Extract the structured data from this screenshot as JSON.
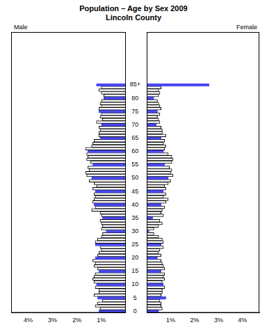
{
  "chart_data": {
    "type": "bar",
    "orientation": "horizontal",
    "title": "Population – Age by Sex 2009",
    "subtitle": "Lincoln County",
    "categories": [
      "0",
      null,
      null,
      null,
      null,
      "5",
      null,
      null,
      null,
      null,
      "10",
      null,
      null,
      null,
      null,
      "15",
      null,
      null,
      null,
      null,
      "20",
      null,
      null,
      null,
      null,
      "25",
      null,
      null,
      null,
      null,
      "30",
      null,
      null,
      null,
      null,
      "35",
      null,
      null,
      null,
      null,
      "40",
      null,
      null,
      null,
      null,
      "45",
      null,
      null,
      null,
      null,
      "50",
      null,
      null,
      null,
      null,
      "55",
      null,
      null,
      null,
      null,
      "60",
      null,
      null,
      null,
      null,
      "65",
      null,
      null,
      null,
      null,
      "70",
      null,
      null,
      null,
      null,
      "75",
      null,
      null,
      null,
      null,
      "80",
      null,
      null,
      null,
      null,
      "85+"
    ],
    "xlim": [
      0,
      4.7
    ],
    "xticks": [
      {
        "value": 1,
        "label": "1%"
      },
      {
        "value": 2,
        "label": "2%"
      },
      {
        "value": 3,
        "label": "3%"
      },
      {
        "value": 4,
        "label": "4%"
      }
    ],
    "series": [
      {
        "name": "Male",
        "values": [
          1.1,
          1.05,
          1.25,
          1.15,
          0.95,
          1.15,
          1.3,
          1.1,
          1.1,
          1.25,
          1.2,
          1.3,
          1.35,
          1.3,
          1.25,
          1.1,
          1.15,
          1.3,
          1.25,
          1.35,
          1.25,
          1.15,
          1.1,
          1.0,
          1.05,
          1.25,
          1.25,
          1.15,
          1.0,
          0.95,
          0.8,
          1.0,
          0.95,
          1.0,
          1.05,
          0.95,
          1.0,
          1.05,
          1.4,
          1.25,
          1.3,
          1.35,
          1.3,
          1.25,
          1.3,
          1.25,
          1.35,
          1.2,
          1.3,
          1.5,
          1.4,
          1.6,
          1.65,
          1.5,
          1.55,
          1.35,
          1.45,
          1.6,
          1.55,
          1.6,
          1.55,
          1.65,
          1.4,
          1.35,
          1.3,
          1.05,
          1.1,
          1.1,
          1.05,
          1.1,
          1.0,
          1.2,
          0.95,
          1.05,
          1.0,
          1.1,
          1.1,
          1.0,
          1.05,
          1.0,
          0.9,
          0.9,
          1.0,
          1.1,
          1.0,
          1.2
        ],
        "colors": [
          "#4848f0",
          "#ffffff",
          "#ffffff",
          "#ffffff",
          "#ffffff",
          "#4848f0",
          "#ffffff",
          "#ffffff",
          "#ffffff",
          "#ffffff",
          "#4848f0",
          "#ffffff",
          "#ffffff",
          "#ffffff",
          "#ffffff",
          "#4848f0",
          "#ffffff",
          "#ffffff",
          "#ffffff",
          "#ffffff",
          "#4848f0",
          "#ffffff",
          "#ffffff",
          "#ffffff",
          "#ffffff",
          "#4848f0",
          "#ffffff",
          "#ffffff",
          "#ffffff",
          "#ffffff",
          "#4848f0",
          "#ffffff",
          "#ffffff",
          "#ffffff",
          "#ffffff",
          "#4848f0",
          "#ffffff",
          "#ffffff",
          "#ffffff",
          "#ffffff",
          "#4848f0",
          "#ffffff",
          "#ffffff",
          "#ffffff",
          "#ffffff",
          "#4848f0",
          "#ffffff",
          "#ffffff",
          "#ffffff",
          "#ffffff",
          "#4848f0",
          "#ffffff",
          "#ffffff",
          "#ffffff",
          "#ffffff",
          "#4848f0",
          "#ffffff",
          "#ffffff",
          "#ffffff",
          "#ffffff",
          "#4848f0",
          "#ffffff",
          "#ffffff",
          "#ffffff",
          "#ffffff",
          "#4848f0",
          "#ffffff",
          "#ffffff",
          "#ffffff",
          "#ffffff",
          "#4848f0",
          "#ffffff",
          "#ffffff",
          "#ffffff",
          "#ffffff",
          "#4848f0",
          "#ffffff",
          "#ffffff",
          "#ffffff",
          "#ffffff",
          "#4848f0",
          "#ffffff",
          "#ffffff",
          "#ffffff",
          "#ffffff",
          "#4848f0"
        ]
      },
      {
        "name": "Female",
        "values": [
          0.5,
          0.65,
          0.6,
          0.6,
          0.55,
          0.8,
          0.6,
          0.65,
          0.65,
          0.75,
          0.7,
          0.65,
          0.75,
          0.7,
          0.75,
          0.6,
          0.75,
          0.7,
          0.65,
          0.6,
          0.45,
          0.6,
          0.5,
          0.55,
          0.7,
          0.6,
          0.7,
          0.65,
          0.5,
          0.3,
          0.1,
          0.3,
          0.5,
          0.65,
          0.55,
          0.25,
          0.7,
          0.6,
          0.65,
          0.75,
          0.6,
          0.8,
          0.9,
          0.7,
          0.8,
          0.7,
          0.8,
          0.75,
          0.9,
          1.0,
          0.9,
          1.1,
          1.0,
          1.05,
          0.95,
          0.75,
          1.05,
          1.1,
          1.05,
          0.9,
          0.7,
          0.75,
          0.8,
          0.7,
          0.75,
          0.6,
          0.8,
          0.65,
          0.65,
          0.6,
          0.4,
          0.55,
          0.5,
          0.45,
          0.55,
          0.45,
          0.6,
          0.55,
          0.5,
          0.45,
          0.3,
          0.5,
          0.55,
          0.5,
          0.6,
          2.6
        ],
        "colors": [
          "#4848f0",
          "#ffffff",
          "#ffffff",
          "#ffffff",
          "#ffffff",
          "#4848f0",
          "#ffffff",
          "#ffffff",
          "#ffffff",
          "#ffffff",
          "#4848f0",
          "#ffffff",
          "#ffffff",
          "#ffffff",
          "#ffffff",
          "#4848f0",
          "#ffffff",
          "#ffffff",
          "#ffffff",
          "#ffffff",
          "#4848f0",
          "#ffffff",
          "#ffffff",
          "#ffffff",
          "#ffffff",
          "#4848f0",
          "#ffffff",
          "#ffffff",
          "#ffffff",
          "#ffffff",
          "#4848f0",
          "#ffffff",
          "#ffffff",
          "#ffffff",
          "#ffffff",
          "#4848f0",
          "#ffffff",
          "#ffffff",
          "#ffffff",
          "#ffffff",
          "#4848f0",
          "#ffffff",
          "#ffffff",
          "#ffffff",
          "#ffffff",
          "#4848f0",
          "#ffffff",
          "#ffffff",
          "#ffffff",
          "#ffffff",
          "#4848f0",
          "#ffffff",
          "#ffffff",
          "#ffffff",
          "#ffffff",
          "#4848f0",
          "#ffffff",
          "#ffffff",
          "#ffffff",
          "#ffffff",
          "#4848f0",
          "#ffffff",
          "#ffffff",
          "#ffffff",
          "#ffffff",
          "#4848f0",
          "#ffffff",
          "#ffffff",
          "#ffffff",
          "#ffffff",
          "#4848f0",
          "#ffffff",
          "#ffffff",
          "#ffffff",
          "#ffffff",
          "#4848f0",
          "#ffffff",
          "#ffffff",
          "#ffffff",
          "#ffffff",
          "#4848f0",
          "#ffffff",
          "#ffffff",
          "#ffffff",
          "#ffffff",
          "#4848f0"
        ]
      }
    ]
  }
}
